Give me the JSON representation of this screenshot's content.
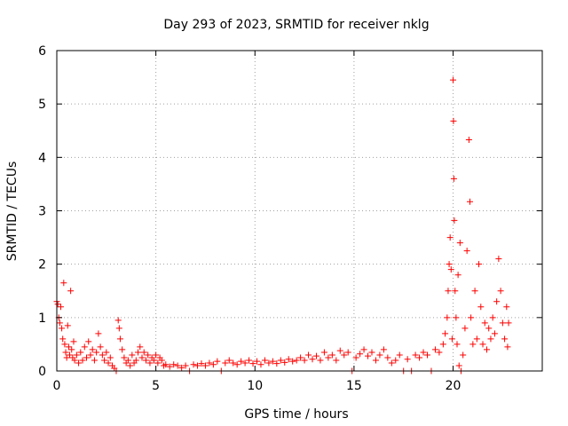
{
  "chart_data": {
    "type": "scatter",
    "title": "Day 293 of 2023, SRMTID for receiver nklg",
    "xlabel": "GPS time / hours",
    "ylabel": "SRMTID / TECUs",
    "xlim": [
      0,
      24.5
    ],
    "ylim": [
      0,
      6
    ],
    "xticks": [
      0,
      5,
      10,
      15,
      20
    ],
    "yticks": [
      0,
      1,
      2,
      3,
      4,
      5,
      6
    ],
    "xtick_labels": [
      "0",
      "5",
      "10",
      "15",
      "20"
    ],
    "ytick_labels": [
      "0",
      "1",
      "2",
      "3",
      "4",
      "5",
      "6"
    ],
    "grid": true,
    "marker": "+",
    "color": "#ff0000",
    "series": [
      {
        "name": "SRMTID",
        "points": [
          [
            0.0,
            1.3
          ],
          [
            0.05,
            1.25
          ],
          [
            0.1,
            1.0
          ],
          [
            0.15,
            0.9
          ],
          [
            0.2,
            1.2
          ],
          [
            0.25,
            0.8
          ],
          [
            0.3,
            0.6
          ],
          [
            0.35,
            1.65
          ],
          [
            0.4,
            0.5
          ],
          [
            0.45,
            0.35
          ],
          [
            0.5,
            0.25
          ],
          [
            0.55,
            0.85
          ],
          [
            0.6,
            0.45
          ],
          [
            0.65,
            0.3
          ],
          [
            0.7,
            1.5
          ],
          [
            0.75,
            0.4
          ],
          [
            0.8,
            0.25
          ],
          [
            0.85,
            0.55
          ],
          [
            0.9,
            0.2
          ],
          [
            1.0,
            0.3
          ],
          [
            1.1,
            0.15
          ],
          [
            1.2,
            0.35
          ],
          [
            1.3,
            0.2
          ],
          [
            1.4,
            0.45
          ],
          [
            1.5,
            0.25
          ],
          [
            1.6,
            0.55
          ],
          [
            1.7,
            0.3
          ],
          [
            1.8,
            0.4
          ],
          [
            1.9,
            0.2
          ],
          [
            2.0,
            0.35
          ],
          [
            2.1,
            0.7
          ],
          [
            2.2,
            0.45
          ],
          [
            2.3,
            0.3
          ],
          [
            2.4,
            0.2
          ],
          [
            2.5,
            0.35
          ],
          [
            2.6,
            0.15
          ],
          [
            2.7,
            0.25
          ],
          [
            2.8,
            0.1
          ],
          [
            2.9,
            0.05
          ],
          [
            3.0,
            0.0
          ],
          [
            3.1,
            0.95
          ],
          [
            3.15,
            0.8
          ],
          [
            3.2,
            0.6
          ],
          [
            3.3,
            0.4
          ],
          [
            3.4,
            0.25
          ],
          [
            3.5,
            0.15
          ],
          [
            3.6,
            0.2
          ],
          [
            3.7,
            0.1
          ],
          [
            3.8,
            0.3
          ],
          [
            3.9,
            0.15
          ],
          [
            4.0,
            0.2
          ],
          [
            4.1,
            0.35
          ],
          [
            4.2,
            0.45
          ],
          [
            4.3,
            0.25
          ],
          [
            4.4,
            0.35
          ],
          [
            4.5,
            0.2
          ],
          [
            4.6,
            0.3
          ],
          [
            4.7,
            0.15
          ],
          [
            4.8,
            0.25
          ],
          [
            4.9,
            0.2
          ],
          [
            5.0,
            0.3
          ],
          [
            5.1,
            0.15
          ],
          [
            5.2,
            0.25
          ],
          [
            5.3,
            0.2
          ],
          [
            5.4,
            0.1
          ],
          [
            5.5,
            0.12
          ],
          [
            5.7,
            0.08
          ],
          [
            5.9,
            0.12
          ],
          [
            6.1,
            0.1
          ],
          [
            6.3,
            0.06
          ],
          [
            6.5,
            0.1
          ],
          [
            6.7,
            0.0
          ],
          [
            6.9,
            0.12
          ],
          [
            7.1,
            0.1
          ],
          [
            7.3,
            0.14
          ],
          [
            7.5,
            0.1
          ],
          [
            7.7,
            0.15
          ],
          [
            7.9,
            0.12
          ],
          [
            8.1,
            0.18
          ],
          [
            8.3,
            0.0
          ],
          [
            8.5,
            0.15
          ],
          [
            8.7,
            0.2
          ],
          [
            8.9,
            0.15
          ],
          [
            9.1,
            0.12
          ],
          [
            9.3,
            0.18
          ],
          [
            9.5,
            0.15
          ],
          [
            9.7,
            0.2
          ],
          [
            9.9,
            0.14
          ],
          [
            10.1,
            0.18
          ],
          [
            10.3,
            0.12
          ],
          [
            10.5,
            0.2
          ],
          [
            10.7,
            0.15
          ],
          [
            10.9,
            0.18
          ],
          [
            11.1,
            0.14
          ],
          [
            11.3,
            0.2
          ],
          [
            11.5,
            0.16
          ],
          [
            11.7,
            0.22
          ],
          [
            11.9,
            0.18
          ],
          [
            12.1,
            0.2
          ],
          [
            12.3,
            0.25
          ],
          [
            12.5,
            0.2
          ],
          [
            12.7,
            0.3
          ],
          [
            12.9,
            0.22
          ],
          [
            13.1,
            0.28
          ],
          [
            13.3,
            0.2
          ],
          [
            13.5,
            0.35
          ],
          [
            13.7,
            0.25
          ],
          [
            13.9,
            0.3
          ],
          [
            14.1,
            0.2
          ],
          [
            14.3,
            0.38
          ],
          [
            14.5,
            0.3
          ],
          [
            14.7,
            0.35
          ],
          [
            14.9,
            0.0
          ],
          [
            15.1,
            0.25
          ],
          [
            15.3,
            0.32
          ],
          [
            15.5,
            0.4
          ],
          [
            15.7,
            0.28
          ],
          [
            15.9,
            0.35
          ],
          [
            16.1,
            0.2
          ],
          [
            16.3,
            0.3
          ],
          [
            16.5,
            0.4
          ],
          [
            16.7,
            0.25
          ],
          [
            16.9,
            0.15
          ],
          [
            17.1,
            0.2
          ],
          [
            17.3,
            0.3
          ],
          [
            17.5,
            0.0
          ],
          [
            17.7,
            0.22
          ],
          [
            17.9,
            0.0
          ],
          [
            18.1,
            0.3
          ],
          [
            18.3,
            0.25
          ],
          [
            18.5,
            0.35
          ],
          [
            18.7,
            0.3
          ],
          [
            18.9,
            0.0
          ],
          [
            19.1,
            0.4
          ],
          [
            19.3,
            0.35
          ],
          [
            19.5,
            0.5
          ],
          [
            19.6,
            0.7
          ],
          [
            19.7,
            1.0
          ],
          [
            19.75,
            1.5
          ],
          [
            19.8,
            2.0
          ],
          [
            19.85,
            2.5
          ],
          [
            19.9,
            1.9
          ],
          [
            19.95,
            0.6
          ],
          [
            20.0,
            5.45
          ],
          [
            20.02,
            4.68
          ],
          [
            20.04,
            3.6
          ],
          [
            20.06,
            2.82
          ],
          [
            20.1,
            1.5
          ],
          [
            20.15,
            1.0
          ],
          [
            20.2,
            0.5
          ],
          [
            20.25,
            1.8
          ],
          [
            20.3,
            0.1
          ],
          [
            20.35,
            2.4
          ],
          [
            20.4,
            0.0
          ],
          [
            20.5,
            0.3
          ],
          [
            20.6,
            0.8
          ],
          [
            20.7,
            2.25
          ],
          [
            20.8,
            4.33
          ],
          [
            20.85,
            3.17
          ],
          [
            20.9,
            1.0
          ],
          [
            21.0,
            0.5
          ],
          [
            21.1,
            1.5
          ],
          [
            21.2,
            0.6
          ],
          [
            21.3,
            2.0
          ],
          [
            21.4,
            1.2
          ],
          [
            21.5,
            0.5
          ],
          [
            21.6,
            0.9
          ],
          [
            21.7,
            0.4
          ],
          [
            21.8,
            0.8
          ],
          [
            21.9,
            0.6
          ],
          [
            22.0,
            1.0
          ],
          [
            22.1,
            0.7
          ],
          [
            22.2,
            1.3
          ],
          [
            22.3,
            2.1
          ],
          [
            22.4,
            1.5
          ],
          [
            22.5,
            0.9
          ],
          [
            22.6,
            0.6
          ],
          [
            22.7,
            1.2
          ],
          [
            22.75,
            0.45
          ],
          [
            22.8,
            0.9
          ]
        ]
      }
    ]
  }
}
